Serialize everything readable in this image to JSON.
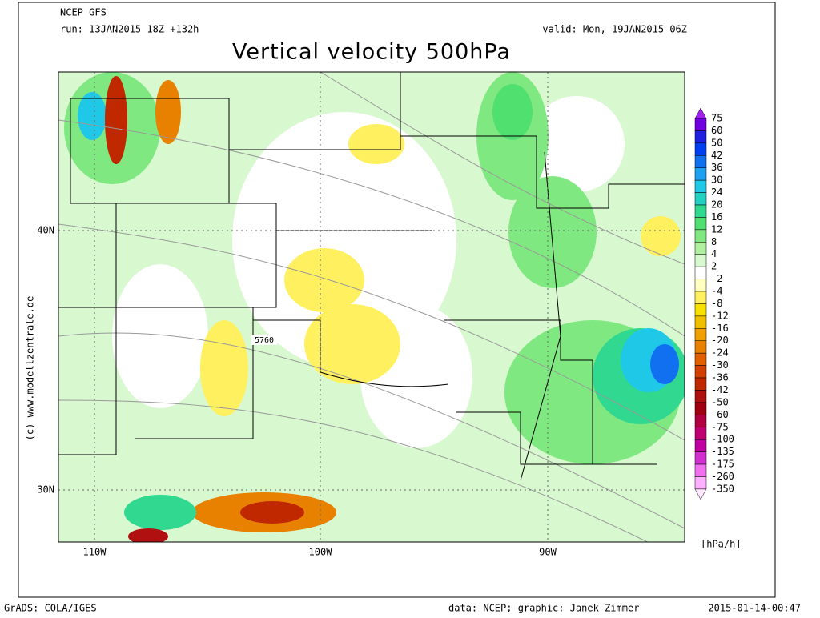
{
  "header": {
    "model": "NCEP GFS",
    "run": "run: 13JAN2015 18Z +132h",
    "valid": "valid: Mon, 19JAN2015 06Z",
    "title": "Vertical velocity 500hPa"
  },
  "map": {
    "lat_labels": [
      "40N",
      "30N"
    ],
    "lon_labels": [
      "110W",
      "100W",
      "90W"
    ],
    "watermark": "(c) www.modellzentrale.de",
    "contour_label": "5760"
  },
  "colorbar": {
    "levels": [
      75,
      60,
      50,
      42,
      36,
      30,
      24,
      20,
      16,
      12,
      8,
      4,
      2,
      -2,
      -4,
      -8,
      -12,
      -16,
      -20,
      -24,
      -30,
      -36,
      -42,
      -50,
      -60,
      -75,
      -100,
      -135,
      -175,
      -260,
      -350
    ],
    "colors": [
      "#a020f0",
      "#7000e0",
      "#2020e0",
      "#0040f0",
      "#1070f0",
      "#20a0f0",
      "#20c8e8",
      "#20d0c0",
      "#30d890",
      "#50e070",
      "#80e880",
      "#b0f0a0",
      "#d8f8d0",
      "#ffffff",
      "#ffffc0",
      "#fff060",
      "#f8e000",
      "#f0c000",
      "#f0a000",
      "#e88000",
      "#e06000",
      "#d04000",
      "#c02800",
      "#b01010",
      "#a00010",
      "#b00040",
      "#c00070",
      "#c000a0",
      "#d030d0",
      "#f070f0",
      "#ffb0ff",
      "#ffe8ff"
    ],
    "unit": "[hPa/h]"
  },
  "footer": {
    "left": "GrADS: COLA/IGES",
    "center": "data: NCEP; graphic: Janek Zimmer",
    "right": "2015-01-14-00:47"
  }
}
